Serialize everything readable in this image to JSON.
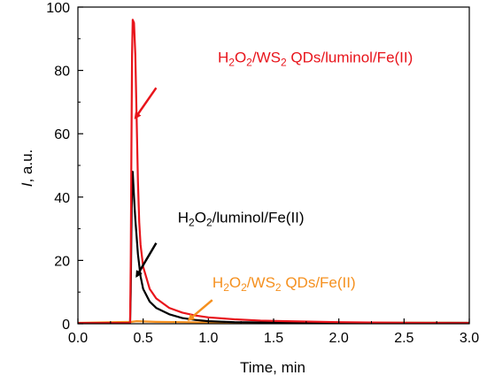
{
  "chart_data": {
    "type": "line",
    "xlabel": "Time, min",
    "ylabel": {
      "italic": "I",
      "rest": ", a.u."
    },
    "xlim": [
      0.0,
      3.0
    ],
    "ylim": [
      0,
      100
    ],
    "x_ticks": [
      "0.0",
      "0.5",
      "1.0",
      "1.5",
      "2.0",
      "2.5",
      "3.0"
    ],
    "y_ticks": [
      "0",
      "20",
      "40",
      "60",
      "80",
      "100"
    ],
    "grid": false,
    "series": [
      {
        "label": "H2O2/WS2 QDs/Fe(II)",
        "color": "#f5901e",
        "x": [
          0.0,
          0.41,
          0.45,
          0.6,
          0.8,
          1.0,
          3.0
        ],
        "y": [
          0.3,
          0.6,
          0.8,
          0.6,
          0.5,
          0.4,
          0.3
        ]
      },
      {
        "label": "H2O2/luminol/Fe(II)",
        "color": "#000000",
        "x": [
          0.0,
          0.4,
          0.405,
          0.41,
          0.415,
          0.42,
          0.43,
          0.44,
          0.46,
          0.48,
          0.5,
          0.55,
          0.6,
          0.7,
          0.8,
          0.9,
          1.0,
          1.2,
          1.5,
          2.0,
          3.0
        ],
        "y": [
          0.2,
          0.2,
          10,
          30,
          45,
          48,
          40,
          33,
          22,
          15,
          11,
          7,
          5,
          3,
          1.8,
          1.2,
          0.8,
          0.5,
          0.4,
          0.3,
          0.3
        ]
      },
      {
        "label": "H2O2/WS2 QDs/luminol/Fe(II)",
        "color": "#e8141b",
        "x": [
          0.0,
          0.4,
          0.405,
          0.41,
          0.415,
          0.42,
          0.43,
          0.44,
          0.45,
          0.46,
          0.47,
          0.48,
          0.5,
          0.55,
          0.6,
          0.7,
          0.8,
          0.9,
          1.0,
          1.2,
          1.4,
          1.6,
          2.0,
          2.5,
          3.0
        ],
        "y": [
          0.2,
          0.2,
          20,
          55,
          85,
          96,
          95,
          85,
          65,
          45,
          32,
          25,
          18,
          11,
          8,
          5,
          3.5,
          2.6,
          2,
          1.4,
          1,
          0.8,
          0.5,
          0.3,
          0.2
        ]
      }
    ],
    "annotations": [
      {
        "parts": [
          [
            "H",
            ""
          ],
          [
            "2",
            "sub"
          ],
          [
            "O",
            ""
          ],
          [
            "2",
            "sub"
          ],
          [
            "/WS",
            ""
          ],
          [
            "2",
            "sub"
          ],
          [
            " QDs/luminol/Fe(II)",
            ""
          ]
        ],
        "color": "#e8141b",
        "text_x": 1.82,
        "text_y": 82.5,
        "arrow_from": [
          0.6,
          74.5
        ],
        "arrow_to": [
          0.44,
          65
        ]
      },
      {
        "parts": [
          [
            "H",
            ""
          ],
          [
            "2",
            "sub"
          ],
          [
            "O",
            ""
          ],
          [
            "2",
            "sub"
          ],
          [
            "/luminol/Fe(II)",
            ""
          ]
        ],
        "color": "#000000",
        "text_x": 1.25,
        "text_y": 32,
        "arrow_from": [
          0.6,
          25.5
        ],
        "arrow_to": [
          0.45,
          15
        ]
      },
      {
        "parts": [
          [
            "H",
            ""
          ],
          [
            "2",
            "sub"
          ],
          [
            "O",
            ""
          ],
          [
            "2",
            "sub"
          ],
          [
            "/WS",
            ""
          ],
          [
            "2",
            "sub"
          ],
          [
            " QDs/Fe(II)",
            ""
          ]
        ],
        "color": "#f5901e",
        "text_x": 1.58,
        "text_y": 11.5,
        "arrow_from": [
          1.03,
          7.5
        ],
        "arrow_to": [
          0.85,
          1.2
        ]
      }
    ]
  }
}
